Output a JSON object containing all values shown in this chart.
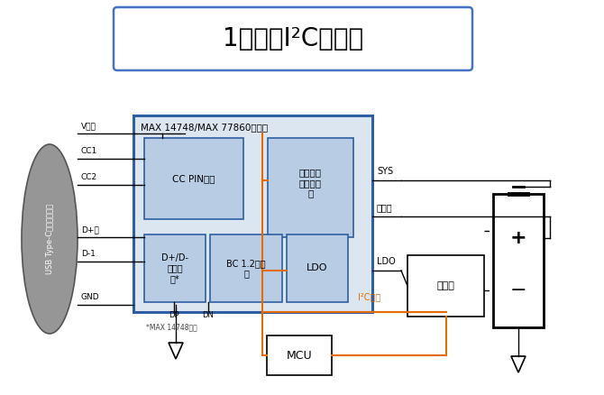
{
  "title": "1チップI²C充電器",
  "background_color": "#ffffff",
  "title_box_edge": "#4472c4",
  "main_chip_label": "MAX 14748/MAX 77860の場合",
  "chip_bg": "#dce6f1",
  "chip_border": "#2e5fa3",
  "inner_box_bg": "#b8cce4",
  "inner_box_border": "#2e5fa3",
  "usb_fill": "#969696",
  "orange_line": "#e36c09",
  "black_line": "#000000",
  "usb_label": "USB Type-Cレセプタクル",
  "mcu_label": "MCU",
  "fuel_label": "燃料計",
  "i2c_label": "I²Cバス",
  "note": "*MAX 14748のみ"
}
